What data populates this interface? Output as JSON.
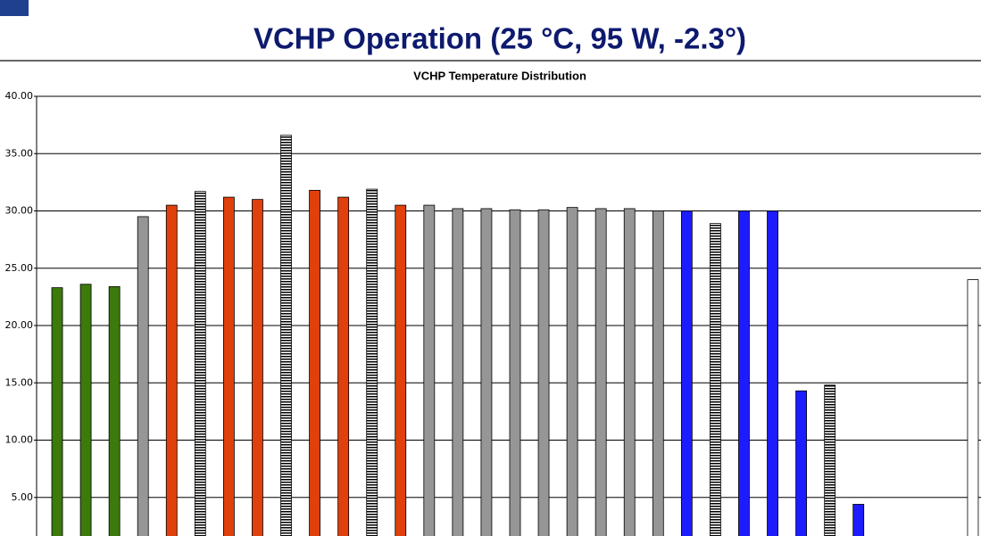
{
  "slide_title": "VCHP Operation (25 °C, 95 W, -2.3°)",
  "chart_data": {
    "type": "bar",
    "title": "VCHP Temperature Distribution",
    "values": [
      23.3,
      23.6,
      23.4,
      29.5,
      30.5,
      31.7,
      31.2,
      31.0,
      36.6,
      31.8,
      31.2,
      31.9,
      30.5,
      30.5,
      30.2,
      30.2,
      30.1,
      30.1,
      30.3,
      30.2,
      30.2,
      30.0,
      30.0,
      28.9,
      30.0,
      30.0,
      14.3,
      14.8,
      4.4,
      null,
      null,
      null,
      24.0
    ],
    "colors": [
      "#3c7a0c",
      "#3c7a0c",
      "#3c7a0c",
      "#969696",
      "#e0400c",
      "#e0400c",
      "#e0400c",
      "#e0400c",
      "#e0400c",
      "#e0400c",
      "#e0400c",
      "#e0400c",
      "#e0400c",
      "#969696",
      "#969696",
      "#969696",
      "#969696",
      "#969696",
      "#969696",
      "#969696",
      "#969696",
      "#969696",
      "#1c1cff",
      "#1c1cff",
      "#1c1cff",
      "#1c1cff",
      "#1c1cff",
      "#1c1cff",
      "#1c1cff",
      null,
      null,
      null,
      "#ffffff"
    ],
    "patterns": [
      "solid",
      "solid",
      "solid",
      "solid",
      "solid",
      "hatched",
      "solid",
      "solid",
      "hatched",
      "solid",
      "solid",
      "hatched",
      "solid",
      "solid",
      "solid",
      "solid",
      "solid",
      "solid",
      "solid",
      "solid",
      "solid",
      "solid",
      "solid",
      "hatched",
      "solid",
      "solid",
      "solid",
      "hatched",
      "solid",
      null,
      null,
      null,
      "solid"
    ],
    "ylim": [
      0,
      40
    ],
    "yticks": [
      {
        "value": 5,
        "label": "5.00"
      },
      {
        "value": 10,
        "label": "10.00"
      },
      {
        "value": 15,
        "label": "15.00"
      },
      {
        "value": 20,
        "label": "20.00"
      },
      {
        "value": 25,
        "label": "25.00"
      },
      {
        "value": 30,
        "label": "30.00"
      },
      {
        "value": 35,
        "label": "35.00"
      },
      {
        "value": 40,
        "label": "40.00"
      }
    ],
    "grid": true
  }
}
